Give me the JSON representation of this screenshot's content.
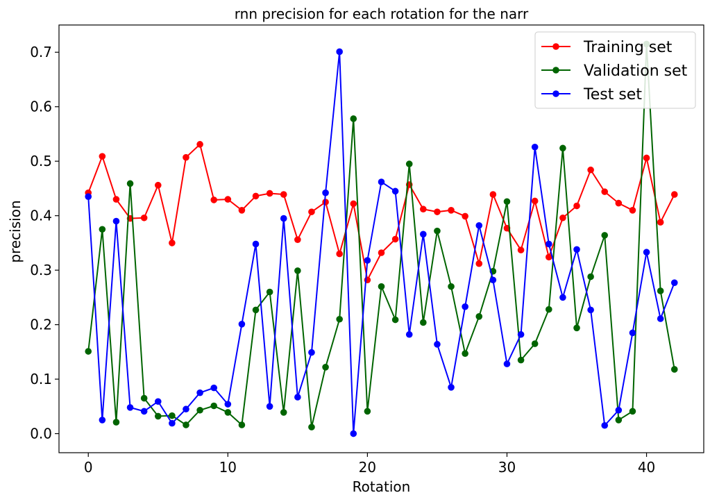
{
  "chart_data": {
    "type": "line",
    "title": "rnn precision for each rotation for the narr",
    "xlabel": "Rotation",
    "ylabel": "precision",
    "xlim": [
      -2.1,
      44.1
    ],
    "ylim": [
      -0.035,
      0.75
    ],
    "xticks": [
      0,
      10,
      20,
      30,
      40
    ],
    "yticks": [
      0.0,
      0.1,
      0.2,
      0.3,
      0.4,
      0.5,
      0.6,
      0.7
    ],
    "ytick_labels": [
      "0.0",
      "0.1",
      "0.2",
      "0.3",
      "0.4",
      "0.5",
      "0.6",
      "0.7"
    ],
    "grid": false,
    "legend_position": "top-right",
    "x": [
      0,
      1,
      2,
      3,
      4,
      5,
      6,
      7,
      8,
      9,
      10,
      11,
      12,
      13,
      14,
      15,
      16,
      17,
      18,
      19,
      20,
      21,
      22,
      23,
      24,
      25,
      26,
      27,
      28,
      29,
      30,
      31,
      32,
      33,
      34,
      35,
      36,
      37,
      38,
      39,
      40,
      41,
      42
    ],
    "series": [
      {
        "name": "Training set",
        "color": "#ff0000",
        "values": [
          0.442,
          0.509,
          0.43,
          0.395,
          0.396,
          0.456,
          0.35,
          0.507,
          0.531,
          0.429,
          0.43,
          0.41,
          0.436,
          0.441,
          0.439,
          0.356,
          0.407,
          0.425,
          0.33,
          0.422,
          0.282,
          0.332,
          0.357,
          0.457,
          0.412,
          0.407,
          0.41,
          0.399,
          0.312,
          0.439,
          0.377,
          0.337,
          0.427,
          0.324,
          0.396,
          0.418,
          0.484,
          0.444,
          0.423,
          0.41,
          0.506,
          0.388,
          0.439
        ]
      },
      {
        "name": "Validation set",
        "color": "#006400",
        "values": [
          0.151,
          0.375,
          0.021,
          0.459,
          0.065,
          0.032,
          0.033,
          0.016,
          0.043,
          0.051,
          0.039,
          0.016,
          0.227,
          0.26,
          0.039,
          0.299,
          0.012,
          0.122,
          0.21,
          0.578,
          0.041,
          0.27,
          0.209,
          0.495,
          0.204,
          0.372,
          0.27,
          0.147,
          0.215,
          0.298,
          0.426,
          0.135,
          0.165,
          0.228,
          0.524,
          0.194,
          0.288,
          0.364,
          0.025,
          0.041,
          0.715,
          0.262,
          0.118
        ]
      },
      {
        "name": "Test set",
        "color": "#0000ff",
        "values": [
          0.435,
          0.025,
          0.39,
          0.048,
          0.041,
          0.059,
          0.019,
          0.045,
          0.075,
          0.084,
          0.054,
          0.201,
          0.348,
          0.05,
          0.395,
          0.067,
          0.149,
          0.442,
          0.701,
          0.0,
          0.318,
          0.462,
          0.445,
          0.182,
          0.366,
          0.164,
          0.085,
          0.233,
          0.382,
          0.282,
          0.128,
          0.182,
          0.526,
          0.348,
          0.25,
          0.338,
          0.227,
          0.015,
          0.043,
          0.185,
          0.333,
          0.211,
          0.277
        ]
      }
    ]
  }
}
